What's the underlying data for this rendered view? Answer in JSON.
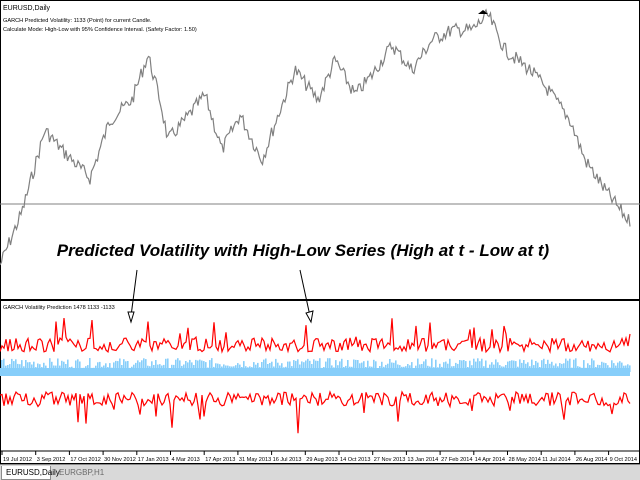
{
  "main_chart": {
    "symbol_label": "EURUSD,Daily",
    "info_line_1": "GARCH Predicted Volatility: 1133 (Point) for current Candle.",
    "info_line_2": "Calculate Mode: High-Low with 95% Confidence Interval. (Safety Factor: 1.50)",
    "annotation": "Predicted Volatility with High-Low Series (High at t - Low at t)",
    "price_series_color": "#808080",
    "horizontal_line_color": "#808080"
  },
  "indicator": {
    "label": "GARCH Volatility Prediction 1478 1133 -1133",
    "band_color": "#ff0000",
    "histogram_color": "#87cefa"
  },
  "x_axis": {
    "labels": [
      "19 Jul 2012",
      "3 Sep 2012",
      "17 Oct 2012",
      "30 Nov 2012",
      "17 Jan 2013",
      "4 Mar 2013",
      "17 Apr 2013",
      "31 May 2013",
      "16 Jul 2013",
      "29 Aug 2013",
      "14 Oct 2013",
      "27 Nov 2013",
      "13 Jan 2014",
      "27 Feb 2014",
      "14 Apr 2014",
      "28 May 2014",
      "11 Jul 2014",
      "26 Aug 2014",
      "9 Oct 2014"
    ]
  },
  "tabs": [
    {
      "label": "EURUSD,Daily",
      "active": true
    },
    {
      "label": "EURGBP,H1",
      "active": false
    }
  ],
  "colors": {
    "background": "#ffffff",
    "separator": "#000000",
    "arrow": "#000000"
  }
}
